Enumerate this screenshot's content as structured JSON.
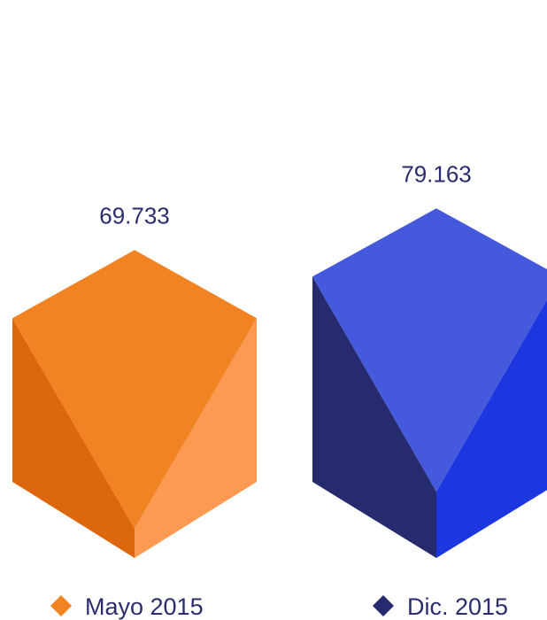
{
  "chart_data": {
    "type": "bar",
    "categories": [
      "Mayo 2015",
      "Dic. 2015"
    ],
    "values": [
      69733,
      79163
    ],
    "value_labels": [
      "69.733",
      "79.163"
    ],
    "colors": {
      "Mayo 2015": {
        "top": "#f28322",
        "left": "#dd670e",
        "right": "#fb9a50"
      },
      "Dic. 2015": {
        "top": "#4559dd",
        "left": "#262b70",
        "right": "#1c37e0"
      }
    },
    "legend": {
      "position": "bottom"
    }
  }
}
